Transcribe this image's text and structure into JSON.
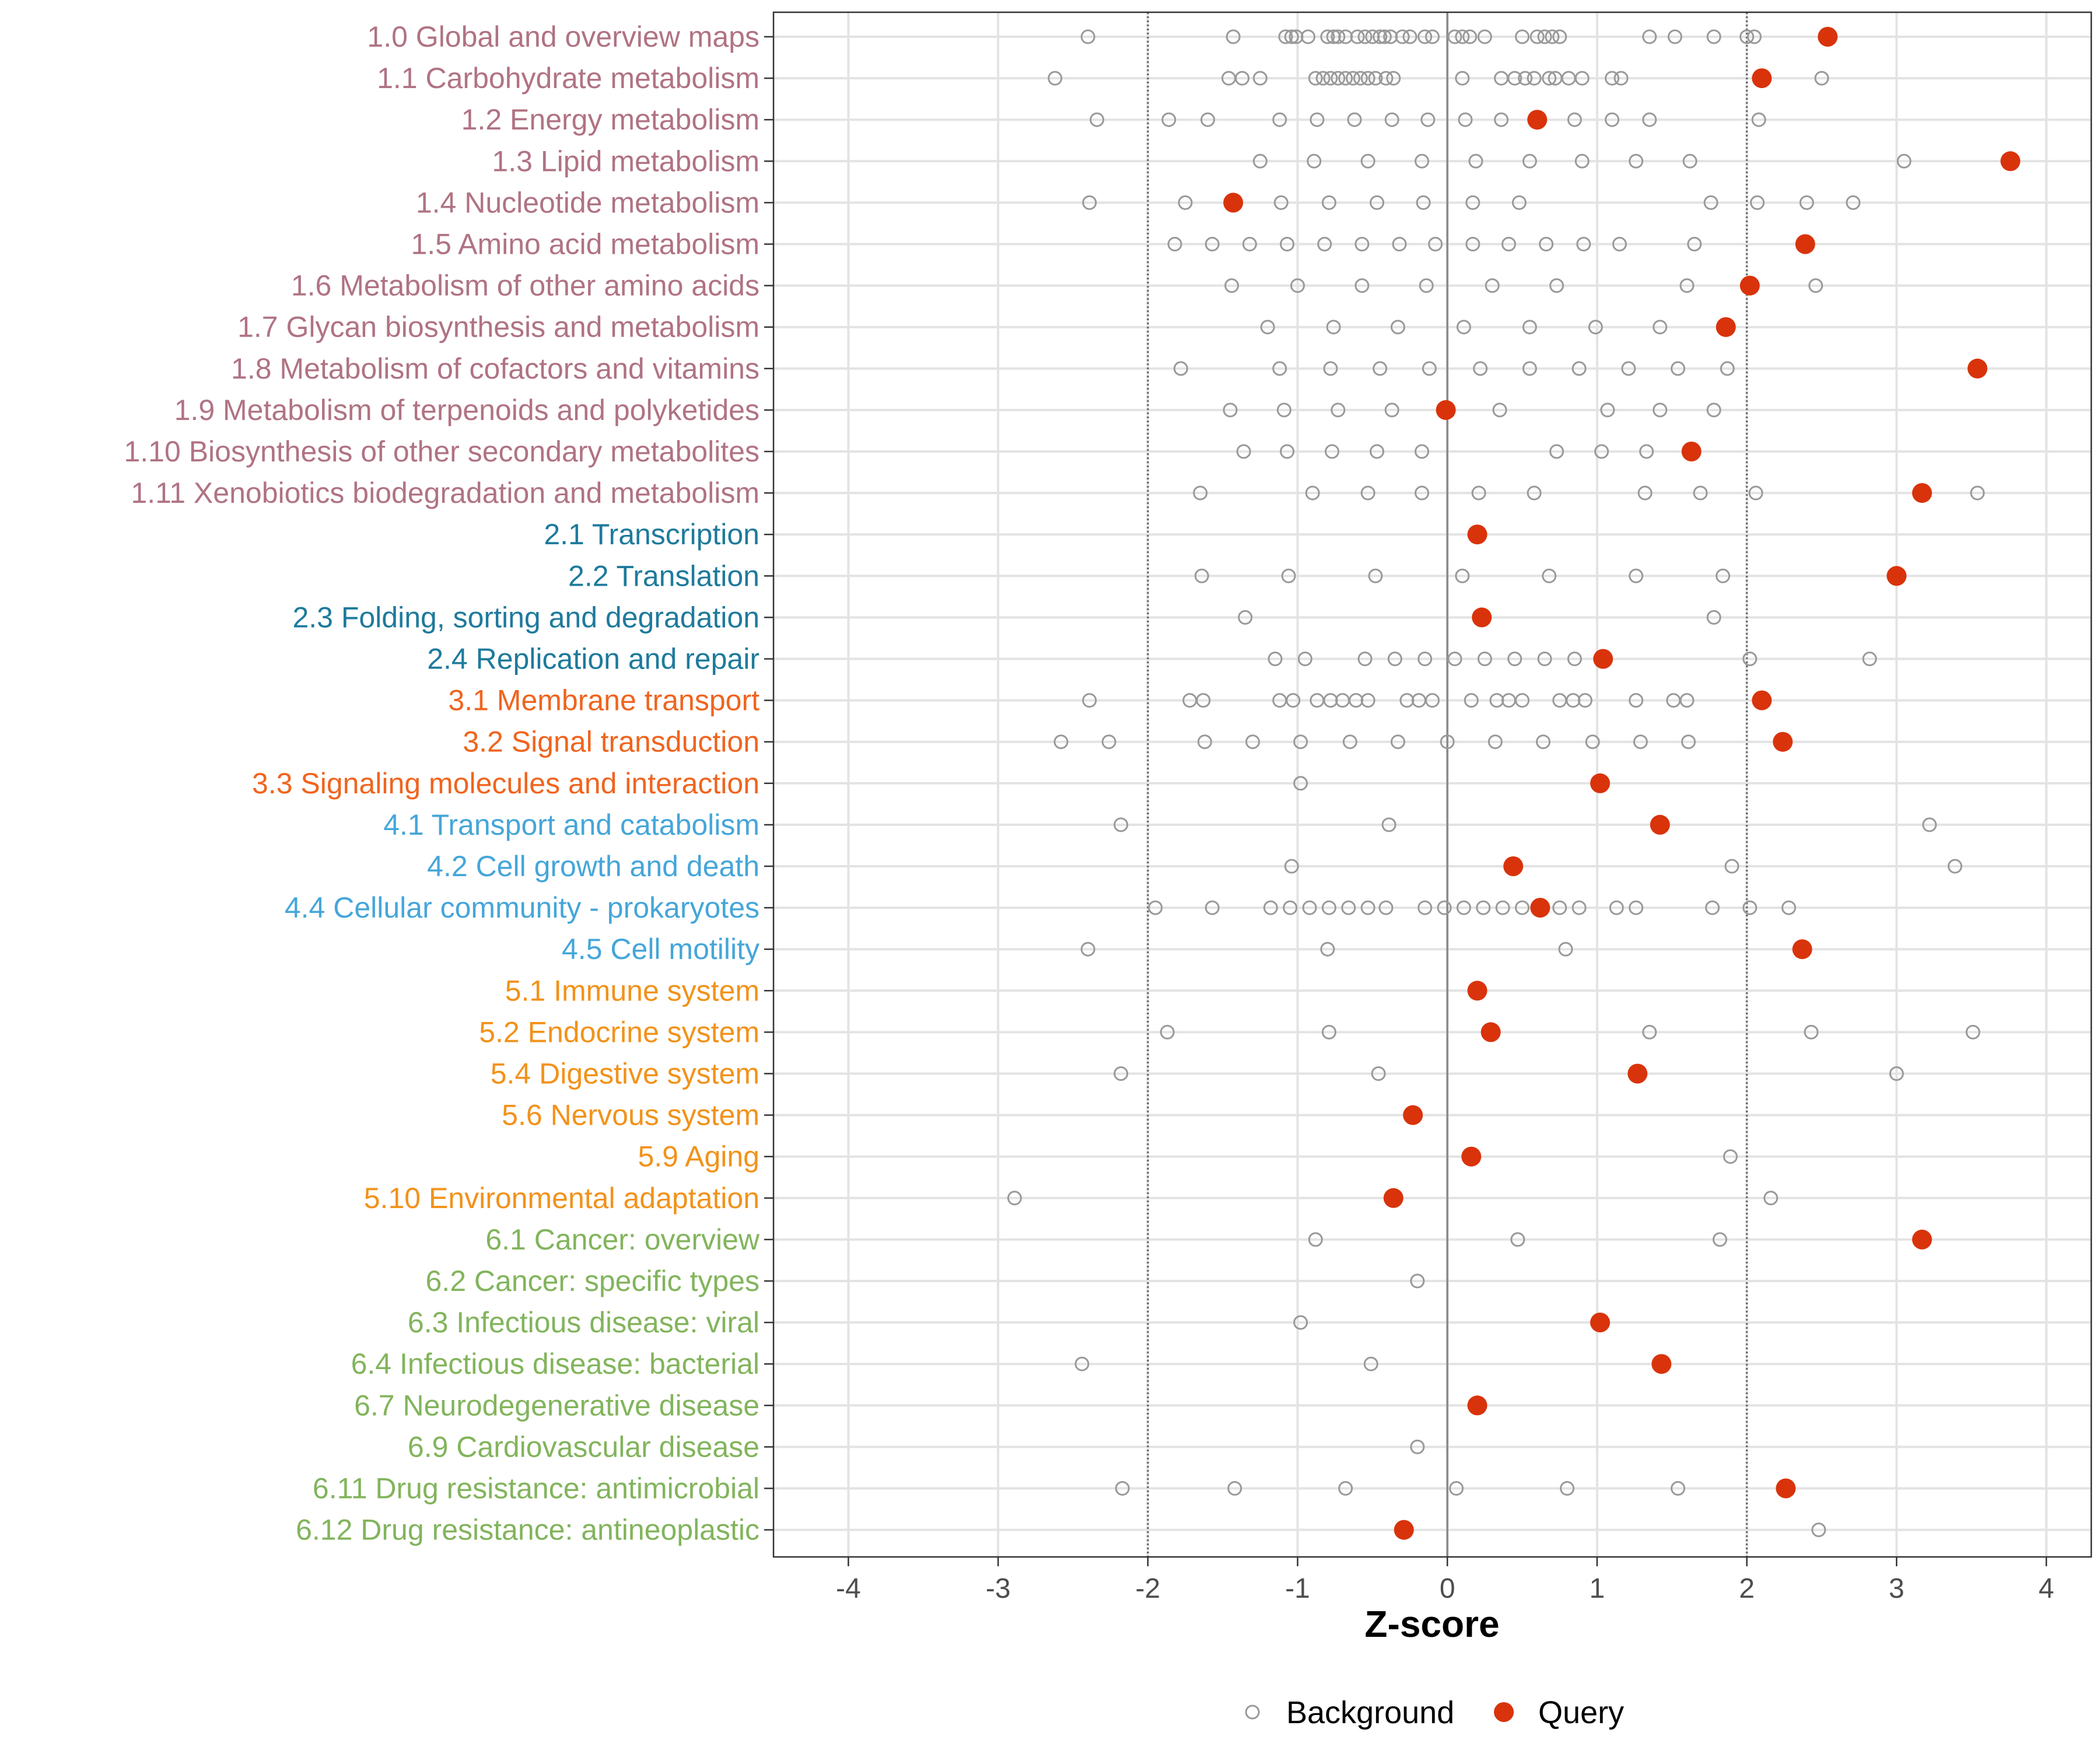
{
  "chart_data": {
    "type": "scatter",
    "xlabel": "Z-score",
    "xlim": [
      -4.5,
      4.3
    ],
    "xticks": [
      -4,
      -3,
      -2,
      -1,
      0,
      1,
      2,
      3,
      4
    ],
    "reference_lines": {
      "solid": [
        0
      ],
      "dotted": [
        -2,
        2
      ]
    },
    "legend": {
      "placement": "bottom",
      "entries": [
        {
          "name": "Background",
          "style": "open-circle",
          "color": "#999999"
        },
        {
          "name": "Query",
          "style": "filled-circle",
          "color": "#D9330B"
        }
      ]
    },
    "group_colors": {
      "1": "#B07383",
      "2": "#1E7A9C",
      "3": "#F0641E",
      "4": "#45A6D9",
      "5": "#F2921A",
      "6": "#82B45C"
    },
    "categories": [
      {
        "label": "1.0 Global and overview maps",
        "group": "1",
        "query": 2.54,
        "background": [
          -2.4,
          -1.43,
          -1.08,
          -1.04,
          -1.01,
          -0.93,
          -0.8,
          -0.76,
          -0.73,
          -0.68,
          -0.6,
          -0.55,
          -0.5,
          -0.45,
          -0.42,
          -0.38,
          -0.3,
          -0.25,
          -0.15,
          -0.1,
          0.05,
          0.1,
          0.15,
          0.25,
          0.5,
          0.6,
          0.65,
          0.7,
          0.75,
          1.35,
          1.52,
          1.78,
          2.0,
          2.05
        ]
      },
      {
        "label": "1.1 Carbohydrate metabolism",
        "group": "1",
        "query": 2.1,
        "background": [
          -2.62,
          -1.46,
          -1.37,
          -1.25,
          -0.88,
          -0.83,
          -0.78,
          -0.73,
          -0.68,
          -0.63,
          -0.58,
          -0.53,
          -0.48,
          -0.41,
          -0.36,
          0.1,
          0.36,
          0.45,
          0.52,
          0.58,
          0.68,
          0.72,
          0.81,
          0.9,
          1.1,
          1.16,
          2.5
        ]
      },
      {
        "label": "1.2 Energy metabolism",
        "group": "1",
        "query": 0.6,
        "background": [
          -2.34,
          -1.86,
          -1.6,
          -1.12,
          -0.87,
          -0.62,
          -0.37,
          -0.13,
          0.12,
          0.36,
          0.85,
          1.1,
          1.35,
          2.08
        ]
      },
      {
        "label": "1.3 Lipid metabolism",
        "group": "1",
        "query": 3.76,
        "background": [
          -1.25,
          -0.89,
          -0.53,
          -0.17,
          0.19,
          0.55,
          0.9,
          1.26,
          1.62,
          3.05
        ]
      },
      {
        "label": "1.4 Nucleotide metabolism",
        "group": "1",
        "query": -1.43,
        "background": [
          -2.39,
          -1.75,
          -1.11,
          -0.79,
          -0.47,
          -0.16,
          0.17,
          0.48,
          1.76,
          2.07,
          2.4,
          2.71
        ]
      },
      {
        "label": "1.5 Amino acid metabolism",
        "group": "1",
        "query": 2.39,
        "background": [
          -1.82,
          -1.57,
          -1.32,
          -1.07,
          -0.82,
          -0.57,
          -0.32,
          -0.08,
          0.17,
          0.41,
          0.66,
          0.91,
          1.15,
          1.65
        ]
      },
      {
        "label": "1.6 Metabolism of other amino acids",
        "group": "1",
        "query": 2.02,
        "background": [
          -1.44,
          -1.0,
          -0.57,
          -0.14,
          0.3,
          0.73,
          1.6,
          2.46
        ]
      },
      {
        "label": "1.7 Glycan biosynthesis and metabolism",
        "group": "1",
        "query": 1.86,
        "background": [
          -1.2,
          -0.76,
          -0.33,
          0.11,
          0.55,
          0.99,
          1.42
        ]
      },
      {
        "label": "1.8 Metabolism of cofactors and vitamins",
        "group": "1",
        "query": 3.54,
        "background": [
          -1.78,
          -1.12,
          -0.78,
          -0.45,
          -0.12,
          0.22,
          0.55,
          0.88,
          1.21,
          1.54,
          1.87
        ]
      },
      {
        "label": "1.9 Metabolism of terpenoids and polyketides",
        "group": "1",
        "query": -0.01,
        "background": [
          -1.45,
          -1.09,
          -0.73,
          -0.37,
          0.35,
          1.07,
          1.42,
          1.78
        ]
      },
      {
        "label": "1.10 Biosynthesis of other secondary metabolites",
        "group": "1",
        "query": 1.63,
        "background": [
          -1.36,
          -1.07,
          -0.77,
          -0.47,
          -0.17,
          0.73,
          1.03,
          1.33
        ]
      },
      {
        "label": "1.11 Xenobiotics biodegradation and metabolism",
        "group": "1",
        "query": 3.17,
        "background": [
          -1.65,
          -0.9,
          -0.53,
          -0.17,
          0.21,
          0.58,
          1.32,
          1.69,
          2.06,
          3.54
        ]
      },
      {
        "label": "2.1 Transcription",
        "group": "2",
        "query": 0.2,
        "background": []
      },
      {
        "label": "2.2 Translation",
        "group": "2",
        "query": 3.0,
        "background": [
          -1.64,
          -1.06,
          -0.48,
          0.1,
          0.68,
          1.26,
          1.84
        ]
      },
      {
        "label": "2.3 Folding, sorting and degradation",
        "group": "2",
        "query": 0.23,
        "background": [
          -1.35,
          1.78
        ]
      },
      {
        "label": "2.4 Replication and repair",
        "group": "2",
        "query": 1.04,
        "background": [
          -1.15,
          -0.95,
          -0.55,
          -0.35,
          -0.15,
          0.05,
          0.25,
          0.45,
          0.65,
          0.85,
          2.02,
          2.82
        ]
      },
      {
        "label": "3.1 Membrane transport",
        "group": "3",
        "query": 2.1,
        "background": [
          -2.39,
          -1.72,
          -1.63,
          -1.12,
          -1.03,
          -0.87,
          -0.78,
          -0.7,
          -0.61,
          -0.53,
          -0.27,
          -0.19,
          -0.1,
          0.16,
          0.33,
          0.41,
          0.5,
          0.75,
          0.84,
          0.92,
          1.26,
          1.51,
          1.6
        ]
      },
      {
        "label": "3.2 Signal transduction",
        "group": "3",
        "query": 2.24,
        "background": [
          -2.58,
          -2.26,
          -1.62,
          -1.3,
          -0.98,
          -0.65,
          -0.33,
          0.0,
          0.32,
          0.64,
          0.97,
          1.29,
          1.61
        ]
      },
      {
        "label": "3.3 Signaling molecules and interaction",
        "group": "3",
        "query": 1.02,
        "background": [
          -0.98
        ]
      },
      {
        "label": "4.1 Transport and catabolism",
        "group": "4",
        "query": 1.42,
        "background": [
          -2.18,
          -0.39,
          3.22
        ]
      },
      {
        "label": "4.2 Cell growth and death",
        "group": "4",
        "query": 0.44,
        "background": [
          -1.04,
          1.9,
          3.39
        ]
      },
      {
        "label": "4.4 Cellular community - prokaryotes",
        "group": "4",
        "query": 0.62,
        "background": [
          -1.95,
          -1.57,
          -1.18,
          -1.05,
          -0.92,
          -0.79,
          -0.66,
          -0.53,
          -0.41,
          -0.15,
          -0.02,
          0.11,
          0.24,
          0.37,
          0.5,
          0.75,
          0.88,
          1.13,
          1.26,
          1.77,
          2.02,
          2.28
        ]
      },
      {
        "label": "4.5 Cell motility",
        "group": "4",
        "query": 2.37,
        "background": [
          -2.4,
          -0.8,
          0.79
        ]
      },
      {
        "label": "5.1 Immune system",
        "group": "5",
        "query": 0.2,
        "background": []
      },
      {
        "label": "5.2 Endocrine system",
        "group": "5",
        "query": 0.29,
        "background": [
          -1.87,
          -0.79,
          1.35,
          2.43,
          3.51
        ]
      },
      {
        "label": "5.4 Digestive system",
        "group": "5",
        "query": 1.27,
        "background": [
          -2.18,
          -0.46,
          3.0
        ]
      },
      {
        "label": "5.6 Nervous system",
        "group": "5",
        "query": -0.23,
        "background": []
      },
      {
        "label": "5.9 Aging",
        "group": "5",
        "query": 0.16,
        "background": [
          1.89
        ]
      },
      {
        "label": "5.10 Environmental adaptation",
        "group": "5",
        "query": -0.36,
        "background": [
          -2.89,
          2.16
        ]
      },
      {
        "label": "6.1 Cancer: overview",
        "group": "6",
        "query": 3.17,
        "background": [
          -0.88,
          0.47,
          1.82
        ]
      },
      {
        "label": "6.2 Cancer: specific types",
        "group": "6",
        "query": null,
        "background": [
          -0.2
        ]
      },
      {
        "label": "6.3 Infectious disease: viral",
        "group": "6",
        "query": 1.02,
        "background": [
          -0.98
        ]
      },
      {
        "label": "6.4 Infectious disease: bacterial",
        "group": "6",
        "query": 1.43,
        "background": [
          -2.44,
          -0.51
        ]
      },
      {
        "label": "6.7 Neurodegenerative disease",
        "group": "6",
        "query": 0.2,
        "background": []
      },
      {
        "label": "6.9 Cardiovascular disease",
        "group": "6",
        "query": null,
        "background": [
          -0.2
        ]
      },
      {
        "label": "6.11 Drug resistance: antimicrobial",
        "group": "6",
        "query": 2.26,
        "background": [
          -2.17,
          -1.42,
          -0.68,
          0.06,
          0.8,
          1.54
        ]
      },
      {
        "label": "6.12 Drug resistance: antineoplastic",
        "group": "6",
        "query": -0.29,
        "background": [
          2.48
        ]
      }
    ]
  }
}
